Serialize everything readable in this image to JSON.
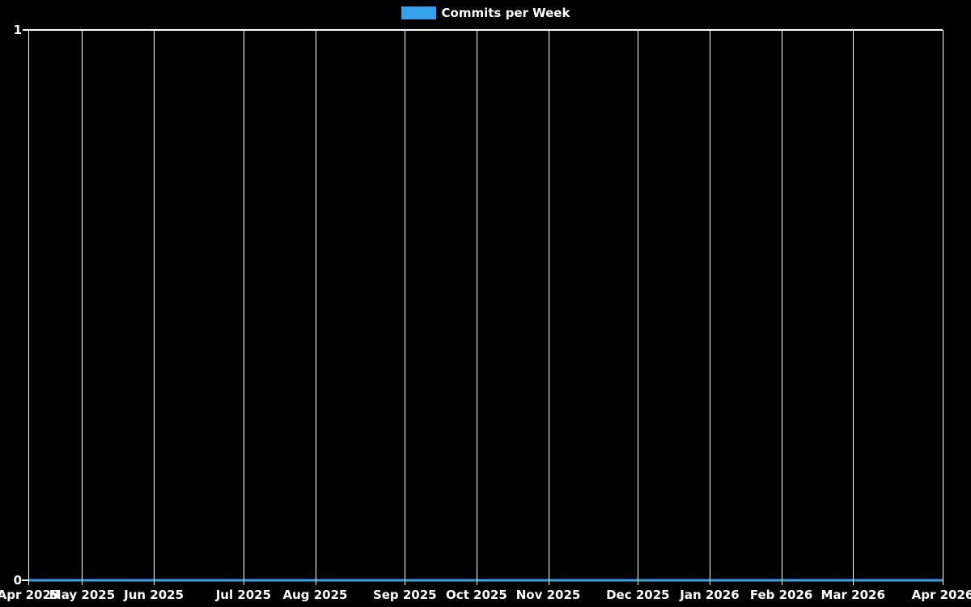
{
  "colors": {
    "background": "#000000",
    "grid": "#ffffff",
    "text": "#ffffff",
    "series": "#36A2EB"
  },
  "legend": {
    "label": "Commits per Week",
    "swatch_color": "#36A2EB",
    "position": "top-center"
  },
  "chart_data": {
    "type": "line",
    "title": "Commits per Week",
    "xlabel": "",
    "ylabel": "",
    "ylim": [
      0,
      1
    ],
    "y_ticks": [
      {
        "label": "1",
        "value": 1
      },
      {
        "label": "0",
        "value": 0
      }
    ],
    "weeks_total": 51,
    "x_ticks": [
      {
        "label": "Apr 2025",
        "week_index": 0
      },
      {
        "label": "May 2025",
        "week_index": 3
      },
      {
        "label": "Jun 2025",
        "week_index": 7
      },
      {
        "label": "Jul 2025",
        "week_index": 12
      },
      {
        "label": "Aug 2025",
        "week_index": 16
      },
      {
        "label": "Sep 2025",
        "week_index": 21
      },
      {
        "label": "Oct 2025",
        "week_index": 25
      },
      {
        "label": "Nov 2025",
        "week_index": 29
      },
      {
        "label": "Dec 2025",
        "week_index": 34
      },
      {
        "label": "Jan 2026",
        "week_index": 38
      },
      {
        "label": "Feb 2026",
        "week_index": 42
      },
      {
        "label": "Mar 2026",
        "week_index": 46
      },
      {
        "label": "Apr 2026",
        "week_index": 51
      }
    ],
    "series": [
      {
        "name": "Commits per Week",
        "color": "#36A2EB",
        "values": [
          0,
          0,
          0,
          0,
          0,
          0,
          0,
          0,
          0,
          0,
          0,
          0,
          0,
          0,
          0,
          0,
          0,
          0,
          0,
          0,
          0,
          0,
          0,
          0,
          0,
          0,
          0,
          0,
          0,
          0,
          0,
          0,
          0,
          0,
          0,
          0,
          0,
          0,
          0,
          0,
          0,
          0,
          0,
          0,
          0,
          0,
          0,
          0,
          0,
          0,
          0,
          0
        ]
      }
    ],
    "grid": "vertical month gridlines + horizontal line at y=1",
    "legend_position": "top-center"
  }
}
